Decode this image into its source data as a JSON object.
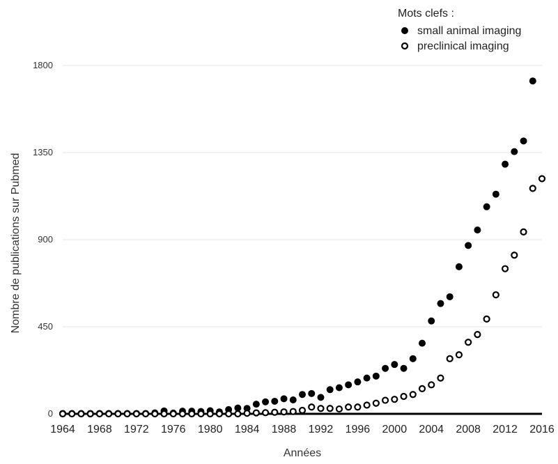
{
  "chart_data": {
    "type": "scatter",
    "xlabel": "Années",
    "ylabel": "Nombre de publications sur Pubmed",
    "legend_title": "Mots clefs :",
    "legend_position": "top-right",
    "xlim": [
      1964,
      2016
    ],
    "ylim": [
      0,
      1800
    ],
    "xticks": [
      "1964",
      "1968",
      "1972",
      "1976",
      "1980",
      "1984",
      "1988",
      "1992",
      "1996",
      "2000",
      "2004",
      "2008",
      "2012",
      "2016"
    ],
    "yticks": [
      "0",
      "450",
      "900",
      "1350",
      "1800"
    ],
    "grid": "horizontal",
    "x": [
      1964,
      1965,
      1966,
      1967,
      1968,
      1969,
      1970,
      1971,
      1972,
      1973,
      1974,
      1975,
      1976,
      1977,
      1978,
      1979,
      1980,
      1981,
      1982,
      1983,
      1984,
      1985,
      1986,
      1987,
      1988,
      1989,
      1990,
      1991,
      1992,
      1993,
      1994,
      1995,
      1996,
      1997,
      1998,
      1999,
      2000,
      2001,
      2002,
      2003,
      2004,
      2005,
      2006,
      2007,
      2008,
      2009,
      2010,
      2011,
      2012,
      2013,
      2014,
      2015,
      2016
    ],
    "series": [
      {
        "name": "small animal imaging",
        "marker": "filled",
        "color": "#000000",
        "values": [
          2,
          2,
          2,
          2,
          2,
          2,
          2,
          2,
          2,
          2,
          5,
          15,
          4,
          14,
          14,
          12,
          16,
          10,
          22,
          30,
          28,
          50,
          62,
          65,
          78,
          72,
          100,
          105,
          85,
          125,
          135,
          150,
          165,
          185,
          195,
          235,
          255,
          235,
          285,
          365,
          480,
          570,
          605,
          760,
          870,
          950,
          1070,
          1135,
          1290,
          1355,
          1410,
          1720,
          null
        ]
      },
      {
        "name": "preclinical imaging",
        "marker": "open",
        "color": "#000000",
        "values": [
          0,
          0,
          0,
          0,
          0,
          0,
          0,
          0,
          0,
          0,
          0,
          0,
          0,
          0,
          0,
          0,
          0,
          0,
          0,
          0,
          3,
          5,
          6,
          8,
          10,
          12,
          18,
          35,
          28,
          28,
          25,
          35,
          35,
          45,
          55,
          70,
          75,
          90,
          100,
          130,
          150,
          185,
          285,
          305,
          370,
          410,
          490,
          615,
          750,
          820,
          940,
          1165,
          1215
        ]
      }
    ]
  }
}
